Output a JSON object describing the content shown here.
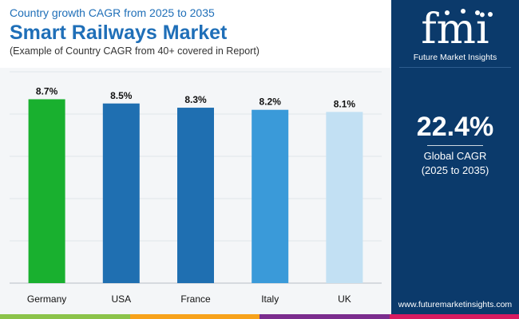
{
  "header": {
    "subtitle_top": "Country growth CAGR from 2025 to 2035",
    "title": "Smart Railways Market",
    "subtitle": "(Example of Country CAGR from 40+ covered in Report)"
  },
  "chart_data": {
    "type": "bar",
    "categories": [
      "Germany",
      "USA",
      "France",
      "Italy",
      "UK"
    ],
    "values": [
      8.7,
      8.5,
      8.3,
      8.2,
      8.1
    ],
    "value_labels": [
      "8.7%",
      "8.5%",
      "8.3%",
      "8.2%",
      "8.1%"
    ],
    "bar_colors": [
      "#19b02f",
      "#1f6fb1",
      "#1f6fb1",
      "#3a9ad9",
      "#c2e0f3"
    ],
    "ylim": [
      0,
      10
    ],
    "grid": true,
    "legend": "none"
  },
  "sidebar": {
    "brand": "Future Market Insights",
    "cagr_value": "22.4%",
    "cagr_label": "Global CAGR",
    "cagr_period": "(2025 to 2035)",
    "website": "www.futuremarketinsights.com"
  },
  "colors": {
    "title": "#1f6fb8",
    "sidebar_bg": "#0b3a6b",
    "stripe": [
      "#8bc34a",
      "#f7a21b",
      "#7b2d8e",
      "#d81b60"
    ]
  }
}
